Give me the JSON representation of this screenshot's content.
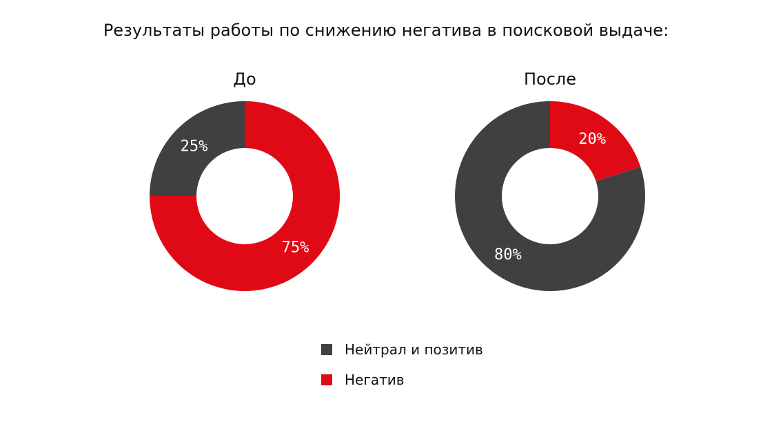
{
  "chart_data": [
    {
      "type": "pie",
      "title": "До",
      "categories": [
        "Нейтрал и позитив",
        "Негатив"
      ],
      "values": [
        25,
        75
      ],
      "labels": [
        "25%",
        "75%"
      ],
      "colors": [
        "#404040",
        "#e00a16"
      ],
      "donut": true
    },
    {
      "type": "pie",
      "title": "После",
      "categories": [
        "Нейтрал и позитив",
        "Негатив"
      ],
      "values": [
        80,
        20
      ],
      "labels": [
        "80%",
        "20%"
      ],
      "colors": [
        "#404040",
        "#e00a16"
      ],
      "donut": true
    }
  ],
  "figure": {
    "title": "Результаты работы по снижению негатива в поисковой выдаче:"
  },
  "legend": {
    "placement": "bottom-center",
    "items": [
      {
        "label": "Нейтрал и позитив",
        "color": "#404040"
      },
      {
        "label": "Негатив",
        "color": "#e00a16"
      }
    ]
  }
}
